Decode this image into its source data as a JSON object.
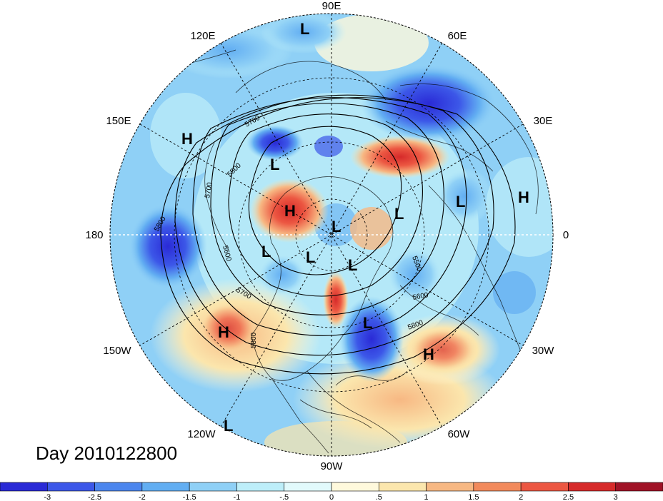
{
  "title": "Day 2010122800",
  "longitude_labels": [
    "90E",
    "60E",
    "30E",
    "0",
    "30W",
    "60W",
    "90W",
    "120W",
    "150W",
    "180",
    "150E",
    "120E"
  ],
  "pressure_systems": [
    {
      "type": "L",
      "region": "north-pole-top"
    },
    {
      "type": "H",
      "region": "east-asia"
    },
    {
      "type": "L",
      "region": "siberia"
    },
    {
      "type": "H",
      "region": "arctic-siberia"
    },
    {
      "type": "L",
      "region": "arctic-center"
    },
    {
      "type": "L",
      "region": "kara-sea"
    },
    {
      "type": "L",
      "region": "europe"
    },
    {
      "type": "H",
      "region": "middle-east"
    },
    {
      "type": "L",
      "region": "alaska"
    },
    {
      "type": "L",
      "region": "canada-north"
    },
    {
      "type": "L",
      "region": "greenland"
    },
    {
      "type": "L",
      "region": "hudson-bay-east"
    },
    {
      "type": "H",
      "region": "north-pacific"
    },
    {
      "type": "H",
      "region": "atlantic"
    },
    {
      "type": "L",
      "region": "eastern-pacific-south"
    }
  ],
  "contour_labels": [
    "5700",
    "5500",
    "5700",
    "5600",
    "5800",
    "5700",
    "5800",
    "5500",
    "5600",
    "5800"
  ],
  "colorbar": {
    "tick_labels": [
      "-3",
      "-2.5",
      "-2",
      "-1.5",
      "-1",
      "-.5",
      "0",
      ".5",
      "1",
      "1.5",
      "2",
      "2.5",
      "3"
    ],
    "colors": [
      "#2a2ad6",
      "#3c57e8",
      "#4c86ee",
      "#62aef2",
      "#8fd0f6",
      "#bdeef9",
      "#e2fafc",
      "#fff9dc",
      "#fbe6ad",
      "#f7b883",
      "#f28a5c",
      "#ec5742",
      "#d62a2a",
      "#a01226"
    ]
  }
}
